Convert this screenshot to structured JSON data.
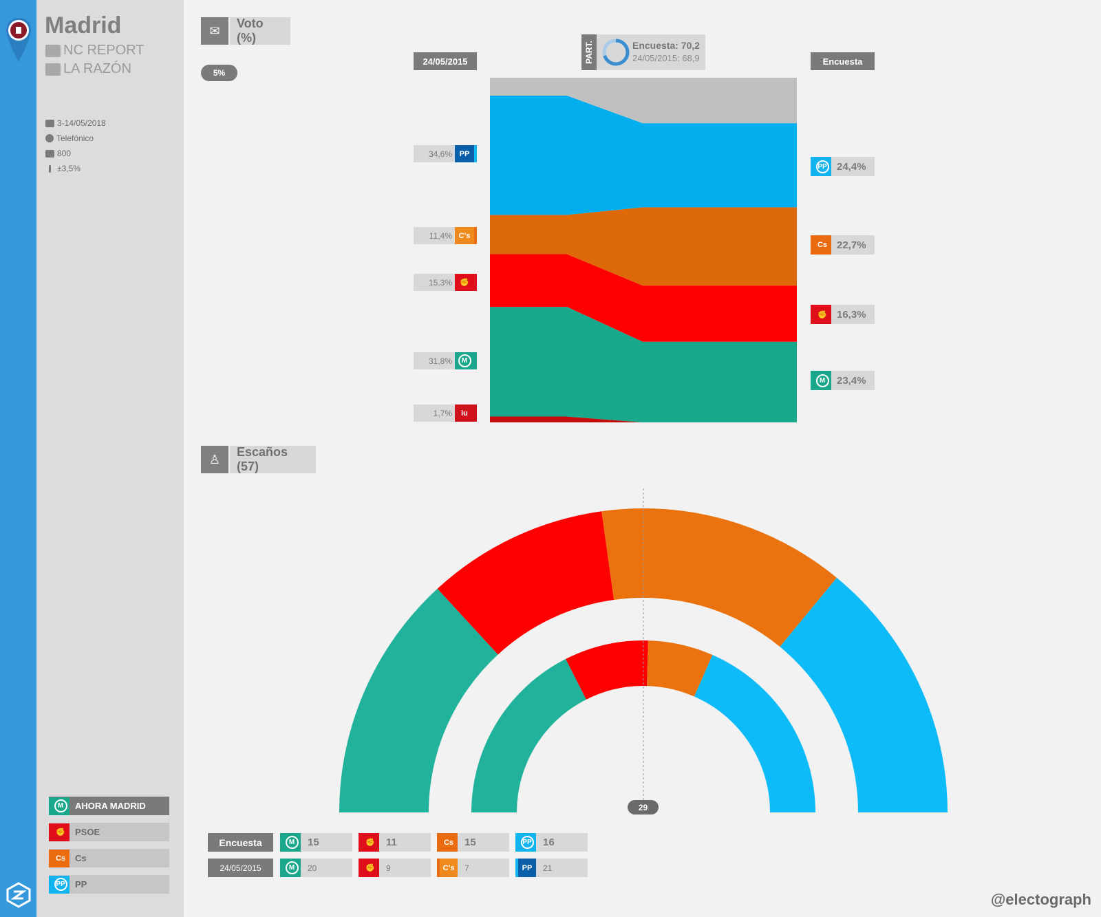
{
  "header": {
    "city": "Madrid",
    "pollster": "NC REPORT",
    "media": "LA RAZÓN",
    "fieldwork": "3-14/05/2018",
    "method": "Telefónico",
    "sample": "800",
    "error": "±3,5%"
  },
  "legend": [
    {
      "label": "AHORA MADRID",
      "color": "#1aa88c"
    },
    {
      "label": "PSOE",
      "color": "#e00d1a"
    },
    {
      "label": "Cs",
      "color": "#eb6c10"
    },
    {
      "label": "PP",
      "color": "#12b4f0"
    }
  ],
  "vote_section": {
    "title": "Voto (%)",
    "threshold": "5%",
    "left_head": "24/05/2015",
    "right_head": "Encuesta",
    "participation_tag": "PART.",
    "participation_survey": "Encuesta: 70,2",
    "participation_prev": "24/05/2015: 68,9"
  },
  "seats_section": {
    "title": "Escaños (57)",
    "majority": "29",
    "row_survey": "Encuesta",
    "row_prev": "24/05/2015"
  },
  "chart_data": [
    {
      "type": "area",
      "title": "Voto (%)",
      "categories": [
        "24/05/2015",
        "Encuesta"
      ],
      "series": [
        {
          "name": "IU",
          "values": [
            1.7,
            0
          ],
          "color": "#c40c0c"
        },
        {
          "name": "AHORA MADRID",
          "values": [
            31.8,
            23.4
          ],
          "color": "#18a88c"
        },
        {
          "name": "PSOE",
          "values": [
            15.3,
            16.3
          ],
          "color": "#ff0000"
        },
        {
          "name": "Cs",
          "values": [
            11.4,
            22.7
          ],
          "color": "#dd6908"
        },
        {
          "name": "PP",
          "values": [
            34.6,
            24.4
          ],
          "color": "#03aeef"
        },
        {
          "name": "Otros",
          "values": [
            5.2,
            13.2
          ],
          "color": "#c0c0c0"
        }
      ],
      "left_labels": [
        "34,6%",
        "11,4%",
        "15,3%",
        "31,8%",
        "1,7%"
      ],
      "right_labels": [
        "24,4%",
        "22,7%",
        "16,3%",
        "23,4%"
      ]
    },
    {
      "type": "pie",
      "title": "Escaños (57)",
      "categories": [
        "AHORA MADRID",
        "PSOE",
        "Cs",
        "PP"
      ],
      "series": [
        {
          "name": "Encuesta",
          "values": [
            15,
            11,
            15,
            16
          ]
        },
        {
          "name": "24/05/2015",
          "values": [
            20,
            9,
            7,
            21
          ]
        }
      ],
      "colors": [
        "#20b29a",
        "#ff0000",
        "#eb730f",
        "#0dbbf8"
      ],
      "survey_labels": [
        "15",
        "11",
        "15",
        "16"
      ],
      "prev_labels": [
        "20",
        "9",
        "7",
        "21"
      ]
    }
  ],
  "footer": {
    "handle": "@electograph"
  }
}
